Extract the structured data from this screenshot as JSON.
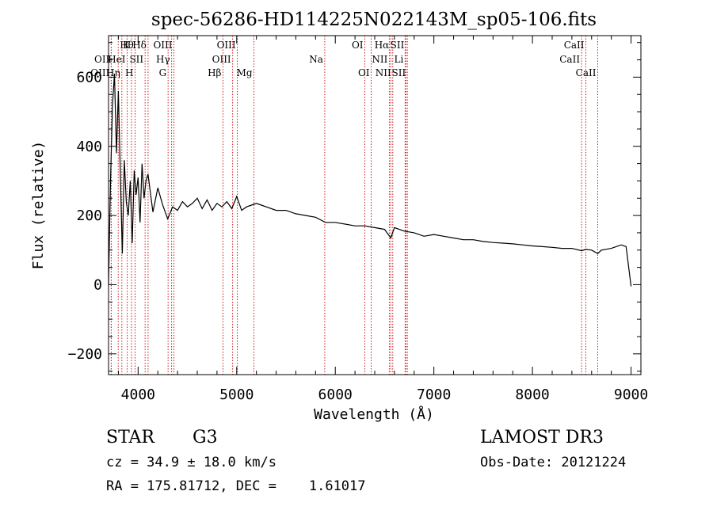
{
  "chart_data": {
    "type": "line",
    "title": "spec-56286-HD114225N022143M_sp05-106.fits",
    "xlabel": "Wavelength (Å)",
    "ylabel": "Flux (relative)",
    "xlim": [
      3700,
      9100
    ],
    "ylim": [
      -260,
      720
    ],
    "x_ticks": [
      4000,
      5000,
      6000,
      7000,
      8000,
      9000
    ],
    "x_tick_labels": [
      "4000",
      "5000",
      "6000",
      "7000",
      "8000",
      "9000"
    ],
    "y_ticks": [
      -200,
      0,
      200,
      400,
      600
    ],
    "y_tick_labels": [
      "−200",
      "0",
      "200",
      "400",
      "600"
    ],
    "grid": false,
    "series": [
      {
        "name": "flux",
        "x": [
          3700,
          3720,
          3740,
          3760,
          3780,
          3800,
          3820,
          3840,
          3860,
          3880,
          3900,
          3920,
          3940,
          3960,
          3980,
          4000,
          4020,
          4040,
          4060,
          4080,
          4100,
          4150,
          4200,
          4250,
          4300,
          4350,
          4400,
          4450,
          4500,
          4550,
          4600,
          4650,
          4700,
          4750,
          4800,
          4850,
          4900,
          4950,
          5000,
          5050,
          5100,
          5150,
          5200,
          5250,
          5300,
          5400,
          5500,
          5600,
          5700,
          5800,
          5900,
          6000,
          6100,
          6200,
          6300,
          6400,
          6500,
          6563,
          6600,
          6700,
          6800,
          6900,
          7000,
          7100,
          7200,
          7300,
          7400,
          7500,
          7600,
          7700,
          7800,
          7900,
          8000,
          8100,
          8200,
          8300,
          8400,
          8500,
          8540,
          8600,
          8662,
          8700,
          8800,
          8900,
          8950,
          9000
        ],
        "y": [
          0,
          300,
          520,
          610,
          380,
          560,
          320,
          90,
          360,
          240,
          200,
          300,
          120,
          330,
          260,
          310,
          180,
          350,
          250,
          300,
          320,
          210,
          280,
          230,
          190,
          225,
          215,
          240,
          225,
          235,
          250,
          220,
          245,
          215,
          235,
          225,
          240,
          220,
          255,
          215,
          225,
          230,
          235,
          230,
          225,
          215,
          215,
          205,
          200,
          195,
          180,
          180,
          175,
          170,
          170,
          165,
          160,
          135,
          165,
          155,
          150,
          140,
          145,
          140,
          135,
          130,
          130,
          125,
          122,
          120,
          118,
          115,
          112,
          110,
          108,
          105,
          105,
          98,
          102,
          100,
          90,
          100,
          105,
          115,
          110,
          -5
        ]
      }
    ],
    "lines": [
      {
        "name": "Hθ",
        "wavelength": 3798,
        "row": 0,
        "side": "right"
      },
      {
        "name": "OII",
        "wavelength": 3727,
        "row": 1,
        "side": "left"
      },
      {
        "name": "OIII",
        "wavelength": 3727,
        "row": 2,
        "side": "left"
      },
      {
        "name": "Hη",
        "wavelength": 3835,
        "row": 2,
        "side": "left"
      },
      {
        "name": "HeI",
        "wavelength": 3889,
        "row": 1,
        "side": "left"
      },
      {
        "name": "K",
        "wavelength": 3933,
        "row": 0,
        "side": "left"
      },
      {
        "name": "H",
        "wavelength": 3969,
        "row": 2,
        "side": "left"
      },
      {
        "name": "SII",
        "wavelength": 4071,
        "row": 1,
        "side": "left"
      },
      {
        "name": "Hδ",
        "wavelength": 4101,
        "row": 0,
        "side": "left"
      },
      {
        "name": "G",
        "wavelength": 4304,
        "row": 2,
        "side": "left"
      },
      {
        "name": "Hγ",
        "wavelength": 4340,
        "row": 1,
        "side": "left"
      },
      {
        "name": "OIII",
        "wavelength": 4363,
        "row": 0,
        "side": "left"
      },
      {
        "name": "Hβ",
        "wavelength": 4861,
        "row": 2,
        "side": "left"
      },
      {
        "name": "OIII",
        "wavelength": 4959,
        "row": 1,
        "side": "left"
      },
      {
        "name": "OIII",
        "wavelength": 5007,
        "row": 0,
        "side": "left"
      },
      {
        "name": "Mg",
        "wavelength": 5175,
        "row": 2,
        "side": "left"
      },
      {
        "name": "Na",
        "wavelength": 5893,
        "row": 1,
        "side": "left"
      },
      {
        "name": "OI",
        "wavelength": 6300,
        "row": 0,
        "side": "left"
      },
      {
        "name": "OI",
        "wavelength": 6364,
        "row": 2,
        "side": "left"
      },
      {
        "name": "NII",
        "wavelength": 6548,
        "row": 1,
        "side": "left"
      },
      {
        "name": "Hα",
        "wavelength": 6563,
        "row": 0,
        "side": "left"
      },
      {
        "name": "NII",
        "wavelength": 6583,
        "row": 2,
        "side": "left"
      },
      {
        "name": "Li",
        "wavelength": 6708,
        "row": 1,
        "side": "left"
      },
      {
        "name": "SII",
        "wavelength": 6716,
        "row": 0,
        "side": "left"
      },
      {
        "name": "SII",
        "wavelength": 6731,
        "row": 2,
        "side": "left"
      },
      {
        "name": "CaII",
        "wavelength": 8498,
        "row": 1,
        "side": "left"
      },
      {
        "name": "CaII",
        "wavelength": 8542,
        "row": 0,
        "side": "left"
      },
      {
        "name": "CaII",
        "wavelength": 8662,
        "row": 2,
        "side": "left"
      }
    ]
  },
  "info": {
    "object_class": "STAR",
    "subclass": "G3",
    "survey": "LAMOST DR3",
    "cz": "cz = 34.9 ± 18.0 km/s",
    "obs_date": "Obs-Date: 20121224",
    "coords": "RA = 175.81712, DEC =    1.61017"
  },
  "colors": {
    "spectrum": "#000000",
    "line_marker": "#cc0000",
    "axis": "#000000"
  }
}
